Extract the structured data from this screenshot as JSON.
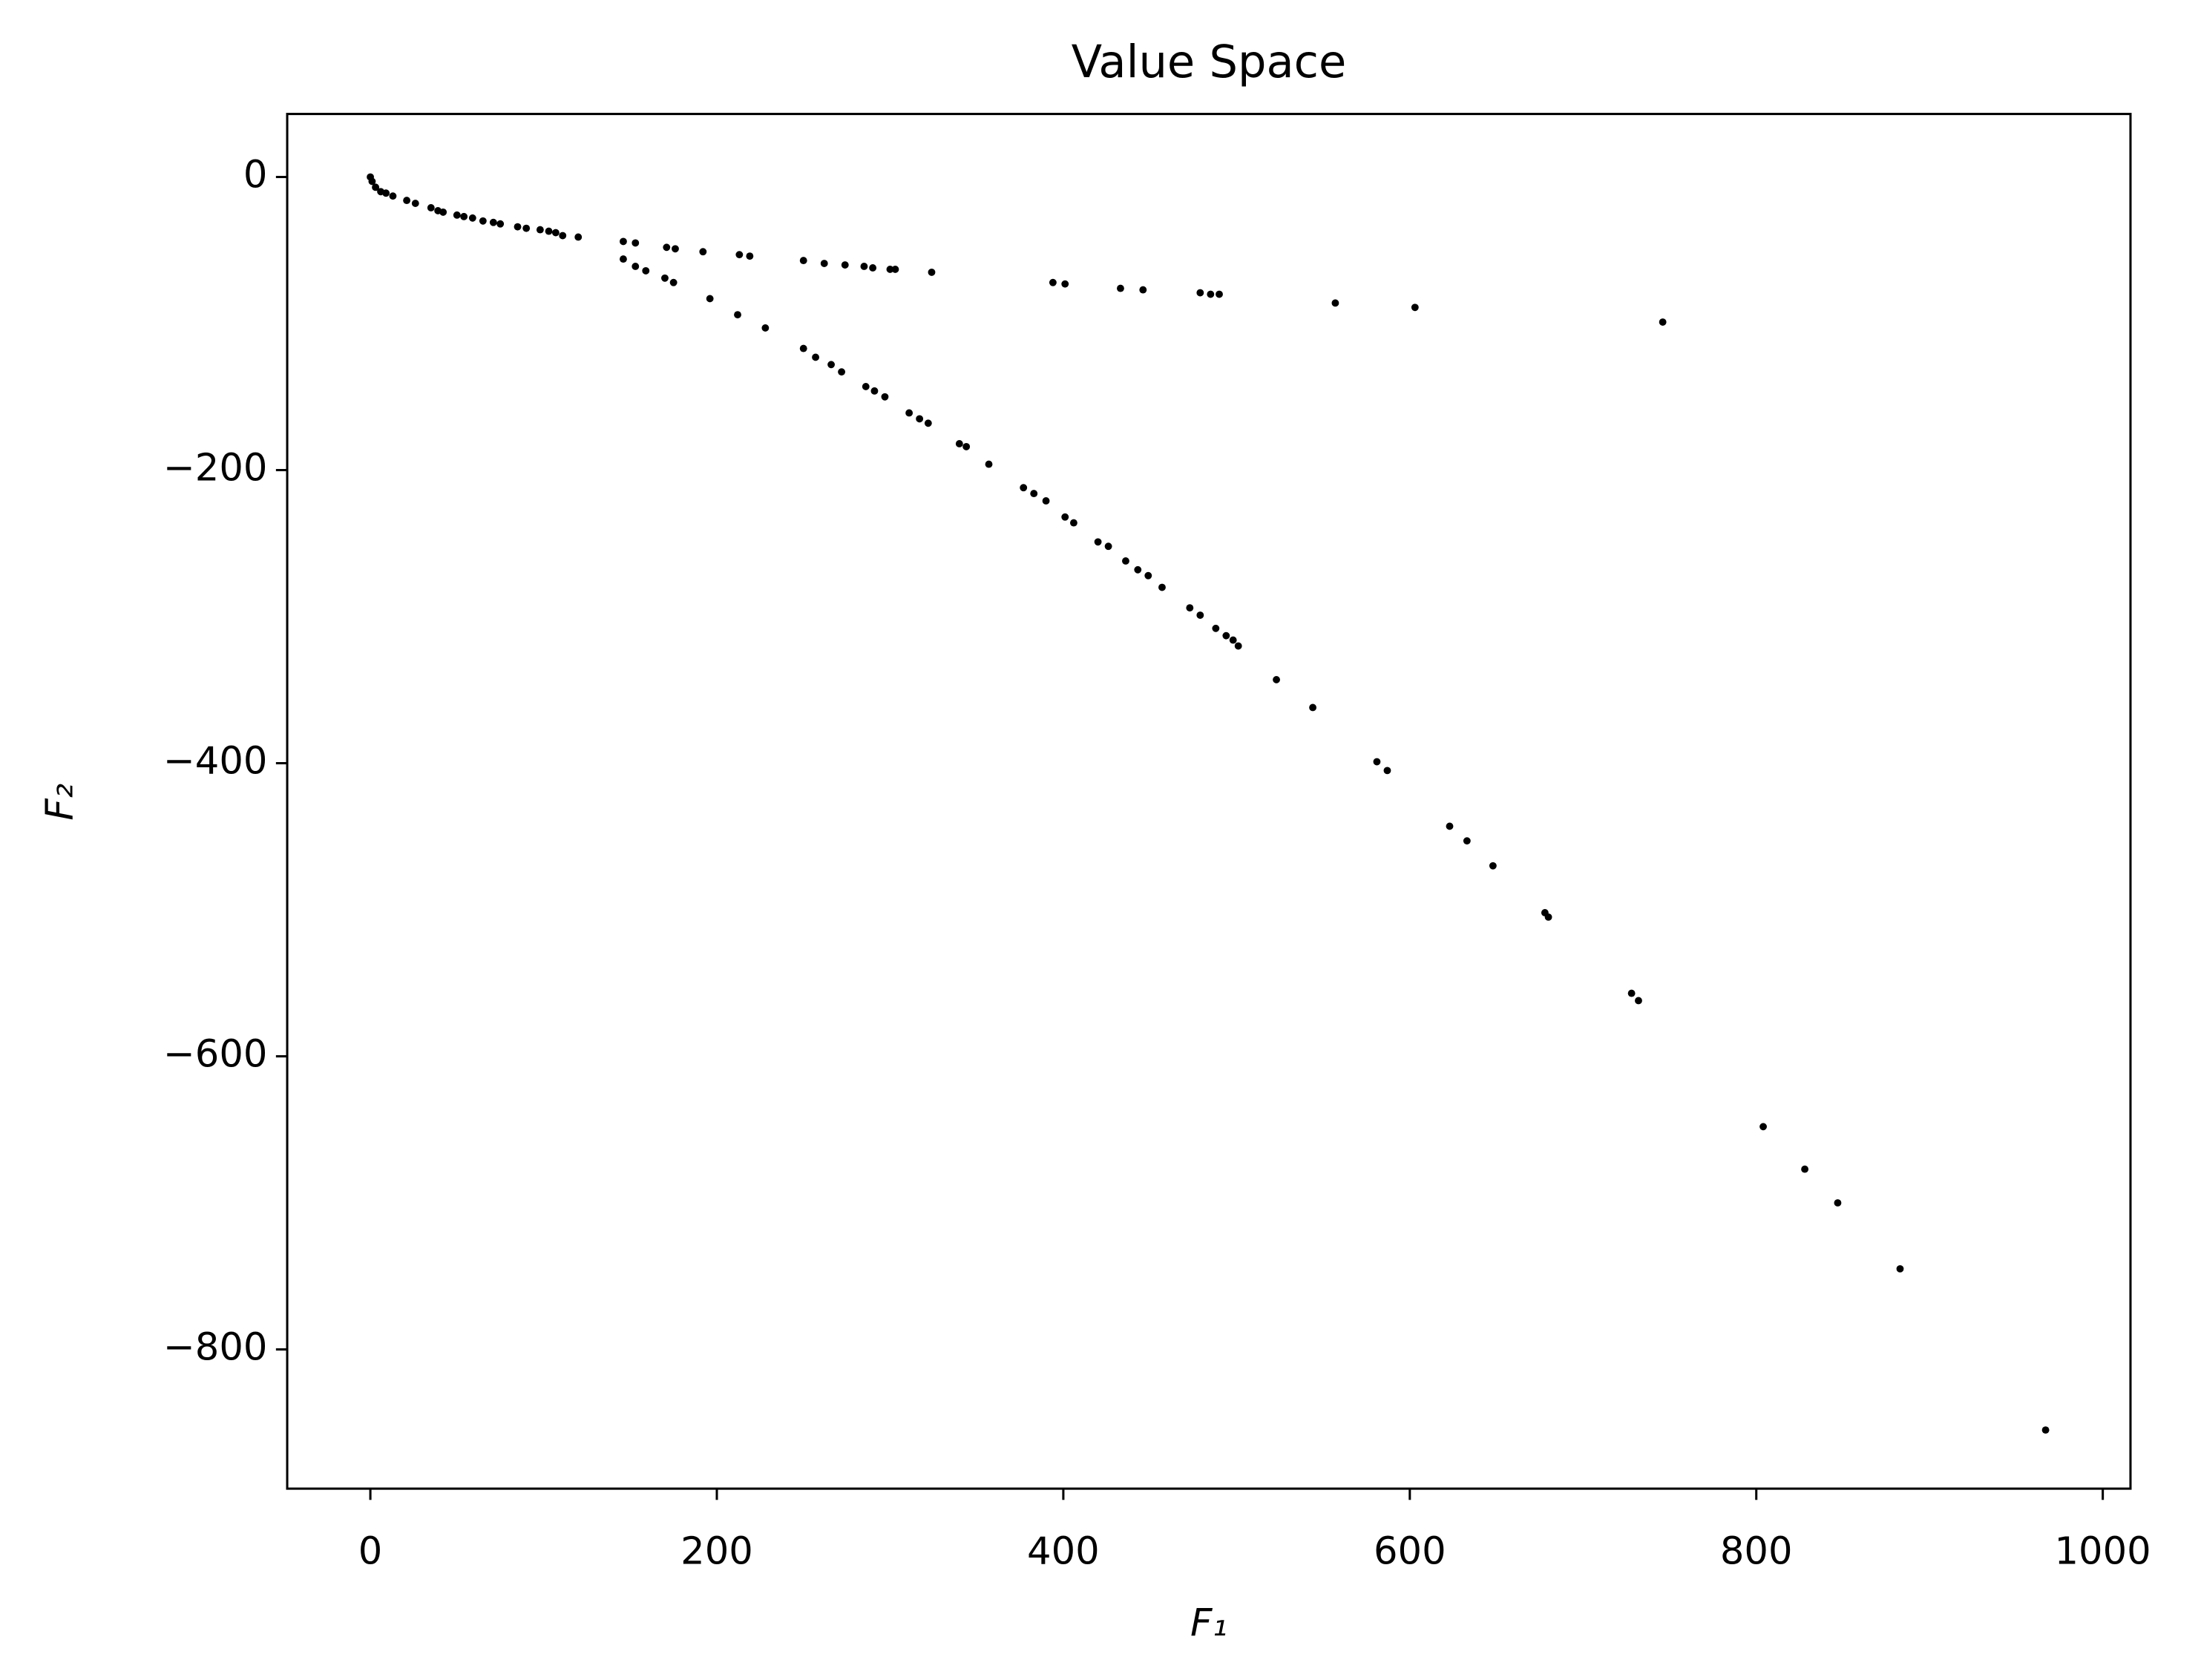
{
  "chart_data": {
    "type": "scatter",
    "title": "Value Space",
    "x_label": "F₁",
    "y_label": "F₂",
    "color": "#000000",
    "x": [
      0,
      1,
      3,
      6,
      9,
      13,
      21,
      26,
      35,
      39,
      42,
      50,
      54,
      59,
      65,
      71,
      75,
      85,
      90,
      98,
      103,
      107,
      111,
      120,
      146,
      153,
      171,
      176,
      192,
      213,
      219,
      250,
      262,
      274,
      285,
      290,
      300,
      303,
      324,
      394,
      401,
      433,
      446,
      479,
      485,
      490,
      557,
      603,
      746,
      146,
      153,
      159,
      170,
      175,
      196,
      212,
      228,
      250,
      257,
      266,
      272,
      286,
      291,
      297,
      311,
      317,
      322,
      340,
      344,
      357,
      377,
      383,
      390,
      401,
      406,
      420,
      426,
      436,
      443,
      449,
      457,
      473,
      479,
      488,
      494,
      498,
      501,
      523,
      544,
      581,
      587,
      623,
      633,
      648,
      678,
      680,
      728,
      732,
      804,
      828,
      847,
      883,
      967
    ],
    "y": [
      0,
      -3,
      -7,
      -10,
      -11,
      -13,
      -16,
      -18,
      -21,
      -23,
      -24,
      -26,
      -27,
      -28,
      -30,
      -31,
      -32,
      -34,
      -35,
      -36,
      -37,
      -38,
      -40,
      -41,
      -44,
      -45,
      -48,
      -49,
      -51,
      -53,
      -54,
      -57,
      -59,
      -60,
      -61,
      -62,
      -63,
      -63,
      -65,
      -72,
      -73,
      -76,
      -77,
      -79,
      -80,
      -80,
      -86,
      -89,
      -99,
      -56,
      -61,
      -64,
      -69,
      -72,
      -83,
      -94,
      -103,
      -117,
      -123,
      -128,
      -133,
      -143,
      -146,
      -150,
      -161,
      -165,
      -168,
      -182,
      -184,
      -196,
      -212,
      -216,
      -221,
      -232,
      -236,
      -249,
      -252,
      -262,
      -268,
      -272,
      -280,
      -294,
      -299,
      -308,
      -313,
      -316,
      -320,
      -343,
      -362,
      -399,
      -405,
      -443,
      -453,
      -470,
      -502,
      -505,
      -557,
      -562,
      -648,
      -677,
      -700,
      -745,
      -855
    ],
    "xlim": [
      -48,
      1016
    ],
    "ylim": [
      -895,
      43
    ],
    "xticks": [
      0,
      200,
      400,
      600,
      800,
      1000
    ],
    "yticks": [
      0,
      {
        "value": -200,
        "label": "−200"
      },
      {
        "value": -400,
        "label": "−400"
      },
      {
        "value": -600,
        "label": "−600"
      },
      {
        "value": -800,
        "label": "−800"
      }
    ]
  }
}
